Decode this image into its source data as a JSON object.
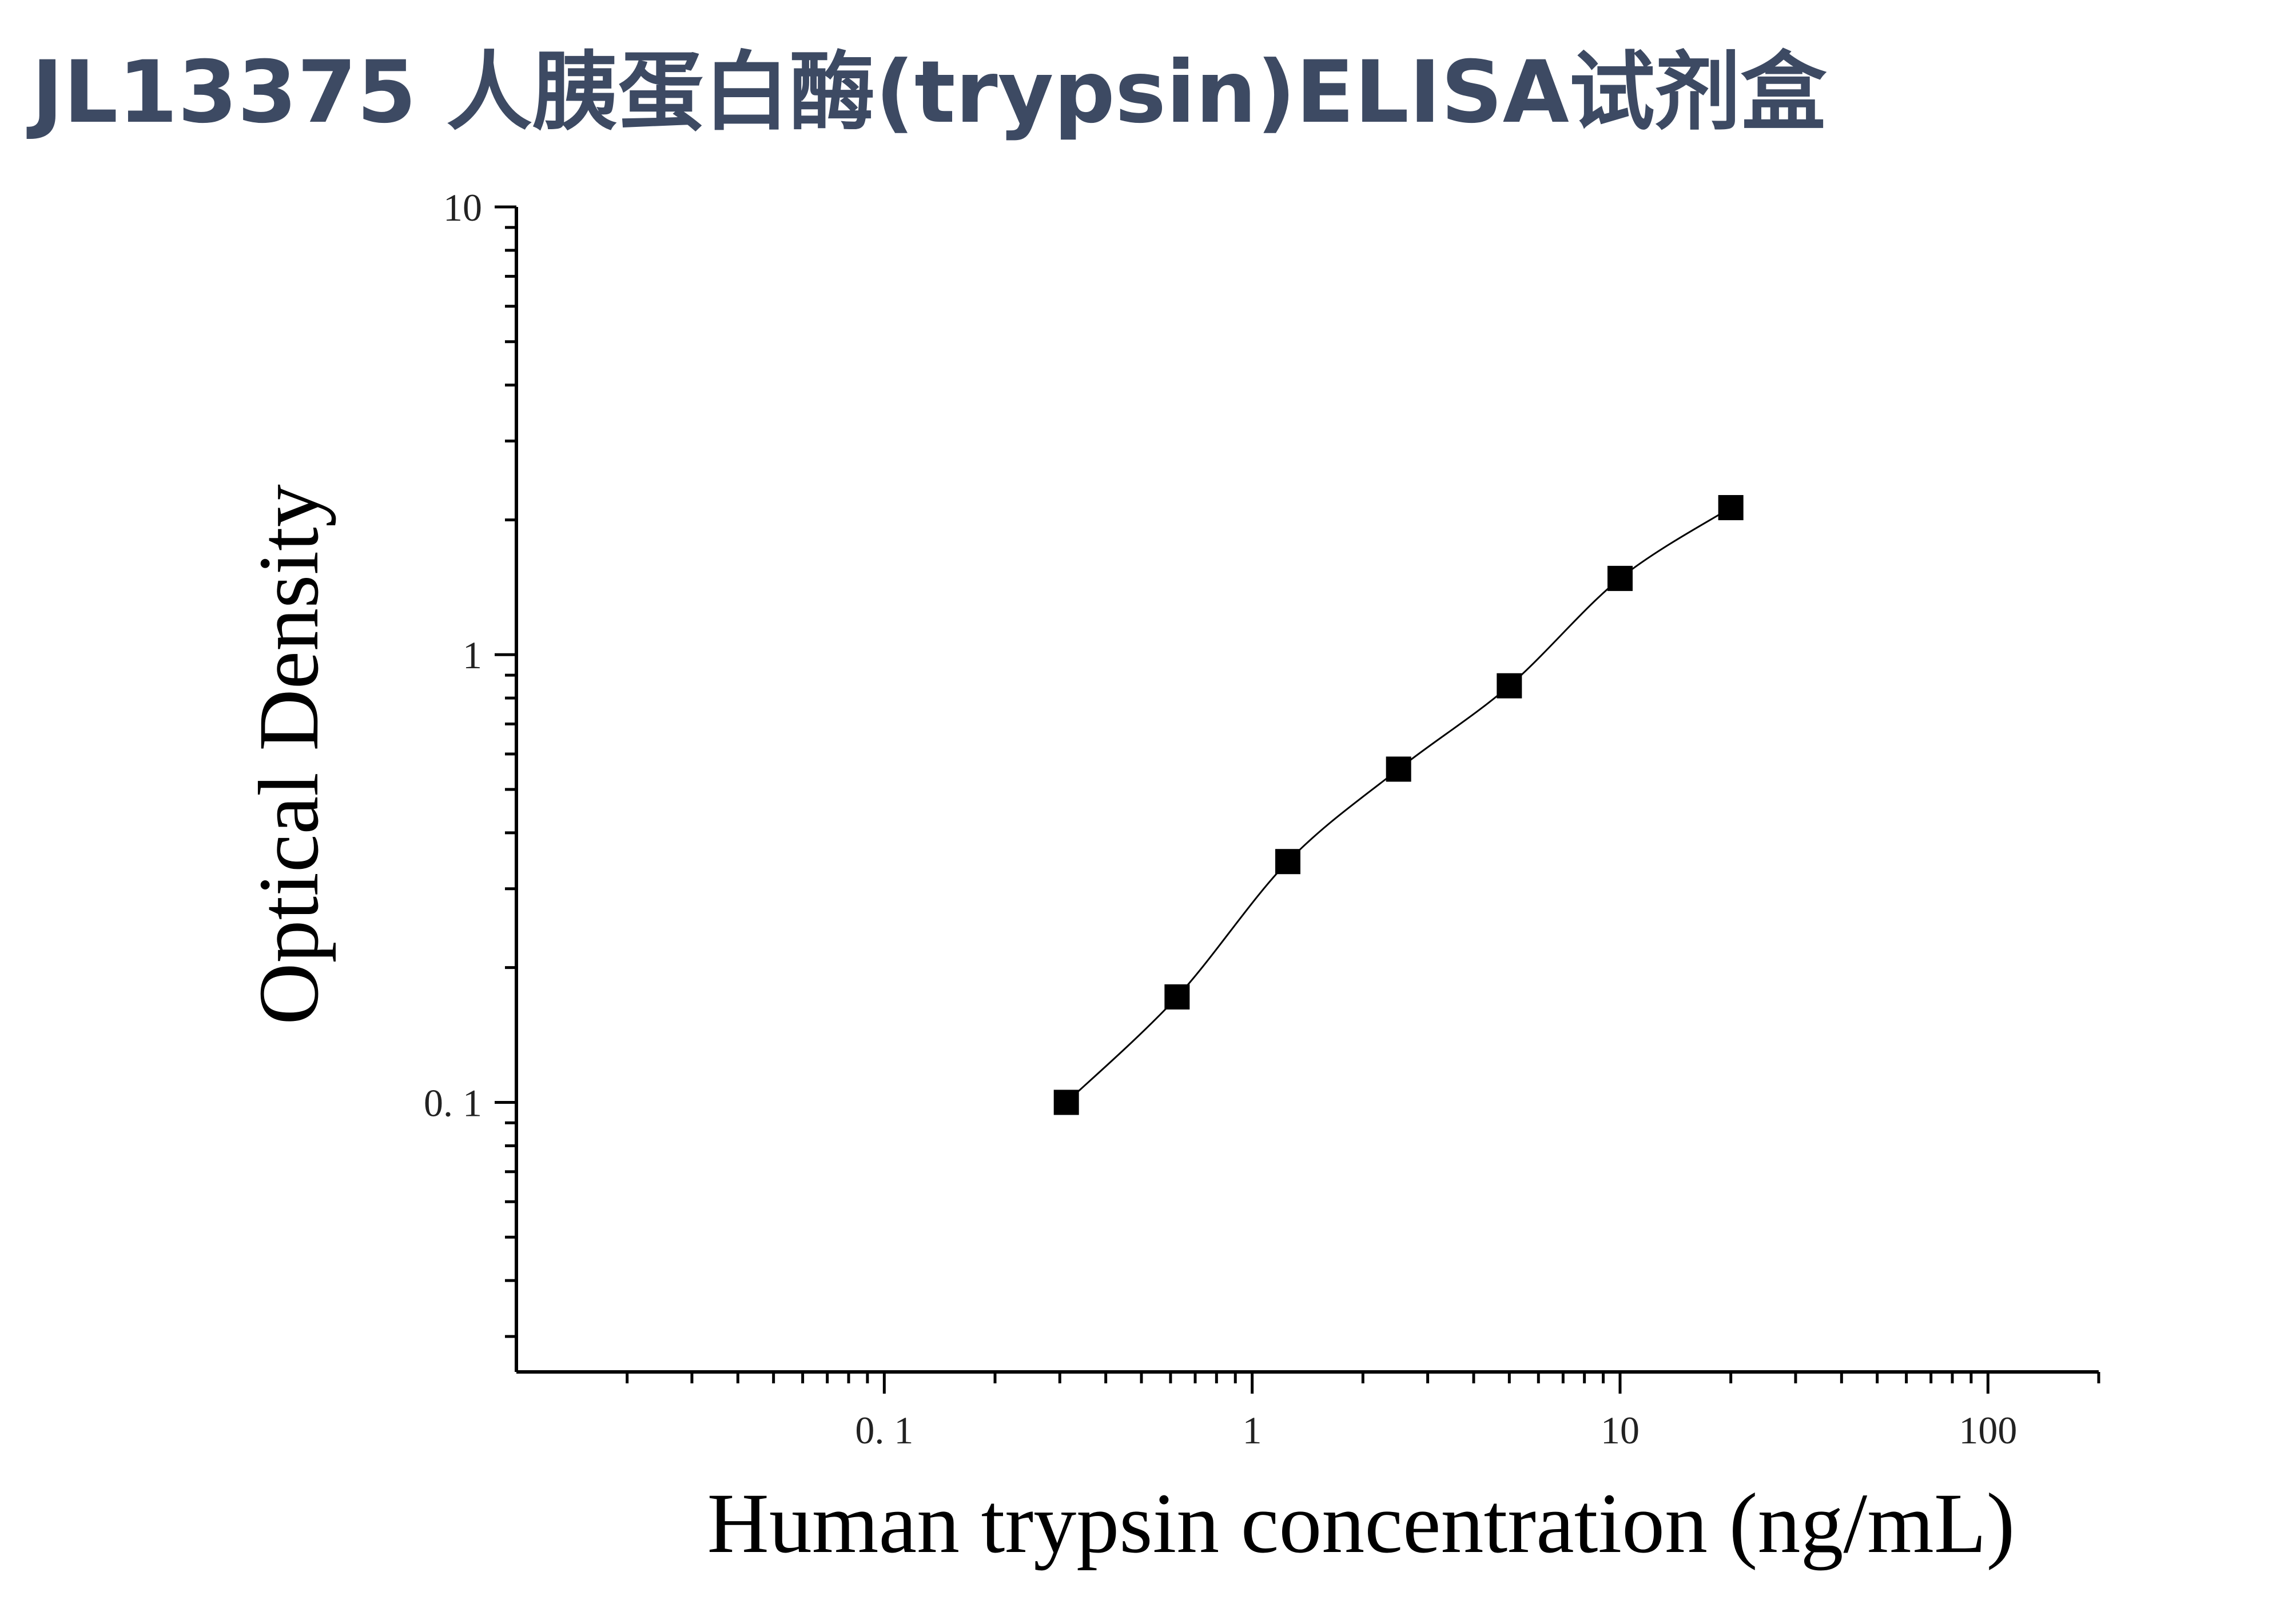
{
  "title": "JL13375 人胰蛋白酶(trypsin)ELISA试剂盒",
  "chart_data": {
    "type": "scatter",
    "xlabel": "Human trypsin concentration (ng/mL)",
    "ylabel": "Optical Density",
    "xscale": "log",
    "yscale": "log",
    "xlim": [
      0.01,
      200
    ],
    "ylim": [
      0.025,
      10
    ],
    "x_ticks": [
      0.1,
      1,
      10,
      100
    ],
    "x_tick_labels": [
      "0. 1",
      "1",
      "10",
      "100"
    ],
    "y_ticks": [
      0.1,
      1,
      10
    ],
    "y_tick_labels": [
      "0. 1",
      "1",
      "10"
    ],
    "grid": false,
    "fit_curve": true,
    "marker": "square",
    "marker_color": "#000000",
    "series": [
      {
        "x": [
          0.3125,
          0.625,
          1.25,
          2.5,
          5,
          10,
          20
        ],
        "y": [
          0.1,
          0.172,
          0.345,
          0.555,
          0.852,
          1.48,
          2.13
        ]
      }
    ]
  }
}
